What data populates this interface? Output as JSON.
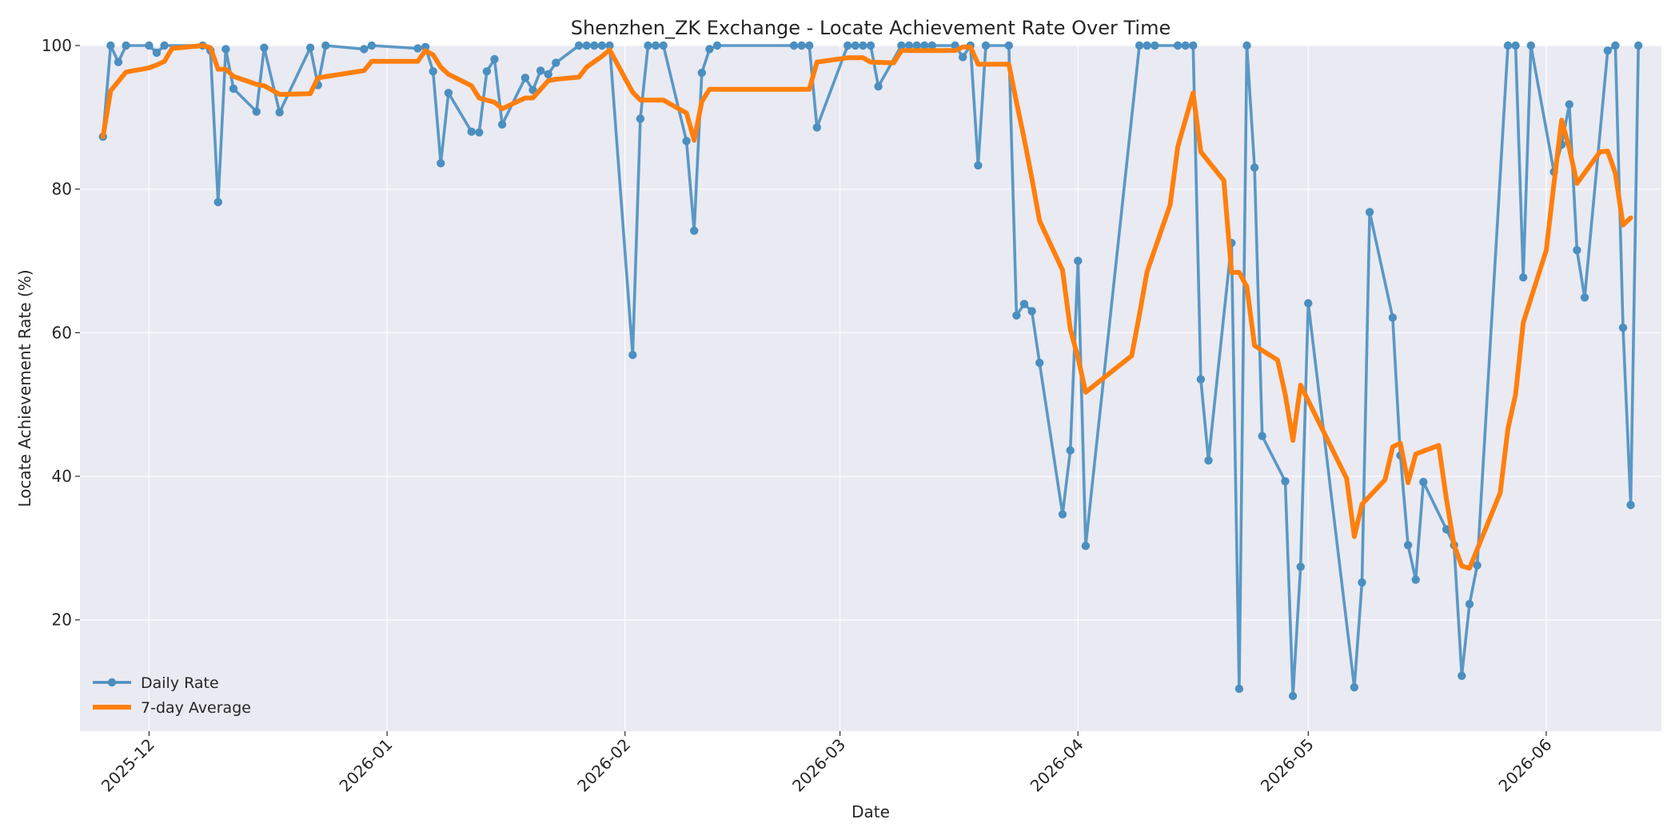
{
  "chart_data": {
    "type": "line",
    "title": "Shenzhen_ZK Exchange - Locate Achievement Rate Over Time",
    "xlabel": "Date",
    "ylabel": "Locate Achievement Rate (%)",
    "x_domain": [
      "2025-11-22",
      "2026-06-16"
    ],
    "ylim": [
      4.5,
      100
    ],
    "y_ticks": [
      20,
      40,
      60,
      80,
      100
    ],
    "x_ticks": [
      "2025-12-01",
      "2026-01-01",
      "2026-02-01",
      "2026-03-01",
      "2026-04-01",
      "2026-05-01",
      "2026-06-01"
    ],
    "x_tick_labels": [
      "2025-12",
      "2026-01",
      "2026-02",
      "2026-03",
      "2026-04",
      "2026-05",
      "2026-06"
    ],
    "grid": true,
    "legend_position": "bottom-left",
    "series": [
      {
        "name": "Daily Rate",
        "color": "#4a8fc0",
        "style": "line-markers",
        "points": [
          [
            "2025-11-25",
            87.3
          ],
          [
            "2025-11-26",
            100
          ],
          [
            "2025-11-27",
            97.7
          ],
          [
            "2025-11-28",
            100
          ],
          [
            "2025-12-01",
            100
          ],
          [
            "2025-12-02",
            99
          ],
          [
            "2025-12-03",
            100
          ],
          [
            "2025-12-08",
            100
          ],
          [
            "2025-12-09",
            99.3
          ],
          [
            "2025-12-10",
            78.2
          ],
          [
            "2025-12-11",
            99.5
          ],
          [
            "2025-12-12",
            94
          ],
          [
            "2025-12-15",
            90.8
          ],
          [
            "2025-12-16",
            99.7
          ],
          [
            "2025-12-18",
            90.7
          ],
          [
            "2025-12-22",
            99.7
          ],
          [
            "2025-12-23",
            94.5
          ],
          [
            "2025-12-24",
            100
          ],
          [
            "2025-12-29",
            99.5
          ],
          [
            "2025-12-30",
            100
          ],
          [
            "2026-01-05",
            99.6
          ],
          [
            "2026-01-06",
            99.8
          ],
          [
            "2026-01-07",
            96.4
          ],
          [
            "2026-01-08",
            83.6
          ],
          [
            "2026-01-09",
            93.4
          ],
          [
            "2026-01-12",
            88
          ],
          [
            "2026-01-13",
            87.9
          ],
          [
            "2026-01-14",
            96.4
          ],
          [
            "2026-01-15",
            98.1
          ],
          [
            "2026-01-16",
            89
          ],
          [
            "2026-01-19",
            95.5
          ],
          [
            "2026-01-20",
            93.8
          ],
          [
            "2026-01-21",
            96.5
          ],
          [
            "2026-01-22",
            96
          ],
          [
            "2026-01-23",
            97.6
          ],
          [
            "2026-01-26",
            100
          ],
          [
            "2026-01-27",
            100
          ],
          [
            "2026-01-28",
            100
          ],
          [
            "2026-01-29",
            100
          ],
          [
            "2026-01-30",
            100
          ],
          [
            "2026-02-02",
            56.9
          ],
          [
            "2026-02-03",
            89.8
          ],
          [
            "2026-02-04",
            100
          ],
          [
            "2026-02-05",
            100
          ],
          [
            "2026-02-06",
            100
          ],
          [
            "2026-02-09",
            86.7
          ],
          [
            "2026-02-10",
            74.2
          ],
          [
            "2026-02-11",
            96.2
          ],
          [
            "2026-02-12",
            99.5
          ],
          [
            "2026-02-13",
            100
          ],
          [
            "2026-02-23",
            100
          ],
          [
            "2026-02-24",
            100
          ],
          [
            "2026-02-25",
            100
          ],
          [
            "2026-02-26",
            88.6
          ],
          [
            "2026-03-02",
            100
          ],
          [
            "2026-03-03",
            100
          ],
          [
            "2026-03-04",
            100
          ],
          [
            "2026-03-05",
            100
          ],
          [
            "2026-03-06",
            94.3
          ],
          [
            "2026-03-09",
            100
          ],
          [
            "2026-03-10",
            100
          ],
          [
            "2026-03-11",
            100
          ],
          [
            "2026-03-12",
            100
          ],
          [
            "2026-03-13",
            100
          ],
          [
            "2026-03-16",
            100
          ],
          [
            "2026-03-17",
            98.4
          ],
          [
            "2026-03-18",
            100
          ],
          [
            "2026-03-19",
            83.3
          ],
          [
            "2026-03-20",
            100
          ],
          [
            "2026-03-23",
            100
          ],
          [
            "2026-03-24",
            62.4
          ],
          [
            "2026-03-25",
            64
          ],
          [
            "2026-03-26",
            63
          ],
          [
            "2026-03-27",
            55.8
          ],
          [
            "2026-03-30",
            34.7
          ],
          [
            "2026-03-31",
            43.6
          ],
          [
            "2026-04-01",
            70
          ],
          [
            "2026-04-02",
            30.3
          ],
          [
            "2026-04-09",
            100
          ],
          [
            "2026-04-10",
            100
          ],
          [
            "2026-04-11",
            100
          ],
          [
            "2026-04-14",
            100
          ],
          [
            "2026-04-15",
            100
          ],
          [
            "2026-04-16",
            100
          ],
          [
            "2026-04-17",
            53.5
          ],
          [
            "2026-04-18",
            42.2
          ],
          [
            "2026-04-21",
            72.5
          ],
          [
            "2026-04-22",
            10.4
          ],
          [
            "2026-04-23",
            100
          ],
          [
            "2026-04-24",
            83
          ],
          [
            "2026-04-25",
            45.6
          ],
          [
            "2026-04-28",
            39.3
          ],
          [
            "2026-04-29",
            9.4
          ],
          [
            "2026-04-30",
            27.4
          ],
          [
            "2026-05-01",
            64.1
          ],
          [
            "2026-05-07",
            10.6
          ],
          [
            "2026-05-08",
            25.2
          ],
          [
            "2026-05-09",
            76.8
          ],
          [
            "2026-05-12",
            62.1
          ],
          [
            "2026-05-13",
            42.9
          ],
          [
            "2026-05-14",
            30.4
          ],
          [
            "2026-05-15",
            25.6
          ],
          [
            "2026-05-16",
            39.2
          ],
          [
            "2026-05-19",
            32.6
          ],
          [
            "2026-05-20",
            30.4
          ],
          [
            "2026-05-21",
            12.2
          ],
          [
            "2026-05-22",
            22.2
          ],
          [
            "2026-05-23",
            27.6
          ],
          [
            "2026-05-27",
            100
          ],
          [
            "2026-05-28",
            100
          ],
          [
            "2026-05-29",
            67.7
          ],
          [
            "2026-05-30",
            100
          ],
          [
            "2026-06-02",
            82.4
          ],
          [
            "2026-06-03",
            86.2
          ],
          [
            "2026-06-04",
            91.8
          ],
          [
            "2026-06-05",
            71.5
          ],
          [
            "2026-06-06",
            64.9
          ],
          [
            "2026-06-09",
            99.3
          ],
          [
            "2026-06-10",
            100
          ],
          [
            "2026-06-11",
            60.7
          ],
          [
            "2026-06-12",
            36
          ],
          [
            "2026-06-13",
            100
          ]
        ]
      },
      {
        "name": "7-day Average",
        "color": "#ff7f0e",
        "style": "line",
        "points": [
          [
            "2025-11-25",
            87.3
          ],
          [
            "2025-11-26",
            93.7
          ],
          [
            "2025-11-28",
            96.3
          ],
          [
            "2025-12-01",
            96.9
          ],
          [
            "2025-12-02",
            97.3
          ],
          [
            "2025-12-03",
            97.8
          ],
          [
            "2025-12-04",
            99.6
          ],
          [
            "2025-12-08",
            100
          ],
          [
            "2025-12-09",
            99.7
          ],
          [
            "2025-12-10",
            96.7
          ],
          [
            "2025-12-11",
            96.7
          ],
          [
            "2025-12-12",
            95.7
          ],
          [
            "2025-12-15",
            94.6
          ],
          [
            "2025-12-16",
            94.4
          ],
          [
            "2025-12-18",
            93.2
          ],
          [
            "2025-12-22",
            93.3
          ],
          [
            "2025-12-23",
            95.5
          ],
          [
            "2025-12-29",
            96.5
          ],
          [
            "2025-12-30",
            97.8
          ],
          [
            "2026-01-05",
            97.8
          ],
          [
            "2026-01-06",
            99.3
          ],
          [
            "2026-01-07",
            98.7
          ],
          [
            "2026-01-08",
            97
          ],
          [
            "2026-01-09",
            96
          ],
          [
            "2026-01-12",
            94.4
          ],
          [
            "2026-01-13",
            92.7
          ],
          [
            "2026-01-15",
            92.1
          ],
          [
            "2026-01-16",
            91.2
          ],
          [
            "2026-01-19",
            92.7
          ],
          [
            "2026-01-20",
            92.7
          ],
          [
            "2026-01-22",
            95.1
          ],
          [
            "2026-01-23",
            95.3
          ],
          [
            "2026-01-26",
            95.6
          ],
          [
            "2026-01-27",
            97
          ],
          [
            "2026-01-29",
            98.5
          ],
          [
            "2026-01-30",
            99.4
          ],
          [
            "2026-02-02",
            93.5
          ],
          [
            "2026-02-03",
            92.4
          ],
          [
            "2026-02-06",
            92.4
          ],
          [
            "2026-02-09",
            90.6
          ],
          [
            "2026-02-10",
            86.8
          ],
          [
            "2026-02-11",
            92.2
          ],
          [
            "2026-02-12",
            93.9
          ],
          [
            "2026-02-25",
            93.9
          ],
          [
            "2026-02-26",
            97.7
          ],
          [
            "2026-03-02",
            98.3
          ],
          [
            "2026-03-04",
            98.3
          ],
          [
            "2026-03-05",
            97.7
          ],
          [
            "2026-03-08",
            97.6
          ],
          [
            "2026-03-09",
            99.3
          ],
          [
            "2026-03-16",
            99.3
          ],
          [
            "2026-03-17",
            99.8
          ],
          [
            "2026-03-18",
            99.8
          ],
          [
            "2026-03-19",
            97.4
          ],
          [
            "2026-03-23",
            97.4
          ],
          [
            "2026-03-24",
            92.1
          ],
          [
            "2026-03-25",
            87
          ],
          [
            "2026-03-26",
            81.5
          ],
          [
            "2026-03-27",
            75.6
          ],
          [
            "2026-03-30",
            68.7
          ],
          [
            "2026-03-31",
            60.5
          ],
          [
            "2026-04-01",
            56.5
          ],
          [
            "2026-04-02",
            51.7
          ],
          [
            "2026-04-08",
            56.8
          ],
          [
            "2026-04-09",
            62.5
          ],
          [
            "2026-04-10",
            68.5
          ],
          [
            "2026-04-13",
            77.8
          ],
          [
            "2026-04-14",
            85.9
          ],
          [
            "2026-04-16",
            93.4
          ],
          [
            "2026-04-17",
            85.2
          ],
          [
            "2026-04-20",
            81.2
          ],
          [
            "2026-04-21",
            68.4
          ],
          [
            "2026-04-22",
            68.4
          ],
          [
            "2026-04-23",
            66.4
          ],
          [
            "2026-04-24",
            58.2
          ],
          [
            "2026-04-27",
            56.2
          ],
          [
            "2026-04-28",
            51.4
          ],
          [
            "2026-04-29",
            45
          ],
          [
            "2026-04-30",
            52.7
          ],
          [
            "2026-05-06",
            39.7
          ],
          [
            "2026-05-07",
            31.6
          ],
          [
            "2026-05-08",
            36.1
          ],
          [
            "2026-05-11",
            39.5
          ],
          [
            "2026-05-12",
            44.1
          ],
          [
            "2026-05-13",
            44.6
          ],
          [
            "2026-05-14",
            39.1
          ],
          [
            "2026-05-15",
            43.1
          ],
          [
            "2026-05-18",
            44.3
          ],
          [
            "2026-05-19",
            36.8
          ],
          [
            "2026-05-20",
            30.4
          ],
          [
            "2026-05-21",
            27.5
          ],
          [
            "2026-05-22",
            27.2
          ],
          [
            "2026-05-26",
            37.7
          ],
          [
            "2026-05-27",
            46.6
          ],
          [
            "2026-05-28",
            51.4
          ],
          [
            "2026-05-29",
            61.4
          ],
          [
            "2026-06-01",
            71.5
          ],
          [
            "2026-06-02",
            80.8
          ],
          [
            "2026-06-03",
            89.6
          ],
          [
            "2026-06-04",
            85.7
          ],
          [
            "2026-06-05",
            80.8
          ],
          [
            "2026-06-08",
            85.2
          ],
          [
            "2026-06-09",
            85.3
          ],
          [
            "2026-06-10",
            82.2
          ],
          [
            "2026-06-11",
            75
          ],
          [
            "2026-06-12",
            76
          ]
        ]
      }
    ]
  }
}
